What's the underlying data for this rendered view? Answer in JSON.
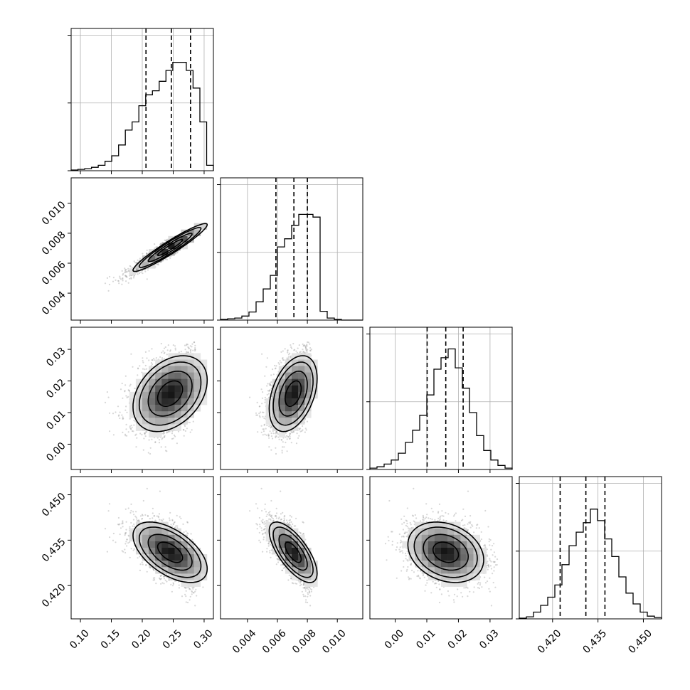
{
  "chart_data": {
    "type": "corner",
    "parameters": [
      {
        "range": [
          0.085,
          0.315
        ],
        "ticks": [
          0.1,
          0.15,
          0.2,
          0.25,
          0.3
        ],
        "tick_labels": [
          "0.10",
          "0.15",
          "0.20",
          "0.25",
          "0.30"
        ],
        "mean": 0.245,
        "sd": 0.03,
        "skew": -0.6,
        "quantiles": [
          0.206,
          0.247,
          0.278
        ]
      },
      {
        "range": [
          0.0022,
          0.0117
        ],
        "ticks": [
          0.004,
          0.006,
          0.008,
          0.01
        ],
        "tick_labels": [
          "0.004",
          "0.006",
          "0.008",
          "0.010"
        ],
        "mean": 0.00705,
        "sd": 0.0008,
        "skew": -0.6,
        "quantiles": [
          0.0059,
          0.0071,
          0.008
        ]
      },
      {
        "range": [
          -0.008,
          0.037
        ],
        "ticks": [
          0.0,
          0.01,
          0.02,
          0.03
        ],
        "tick_labels": [
          "0.00",
          "0.01",
          "0.02",
          "0.03"
        ],
        "mean": 0.016,
        "sd": 0.006,
        "skew": 0,
        "quantiles": [
          0.0101,
          0.016,
          0.0215
        ]
      },
      {
        "range": [
          0.409,
          0.456
        ],
        "ticks": [
          0.42,
          0.435,
          0.45
        ],
        "tick_labels": [
          "0.420",
          "0.435",
          "0.450"
        ],
        "mean": 0.431,
        "sd": 0.005,
        "skew": 0,
        "quantiles": [
          0.4225,
          0.431,
          0.4373
        ]
      }
    ],
    "correlations": [
      [
        1,
        0.95,
        0.35,
        -0.55
      ],
      [
        0.95,
        1,
        0.4,
        -0.7
      ],
      [
        0.35,
        0.4,
        1,
        -0.25
      ],
      [
        -0.55,
        -0.7,
        -0.25,
        1
      ]
    ],
    "diag_histograms": [
      [
        1,
        2,
        3,
        5,
        8,
        14,
        22,
        38,
        60,
        72,
        96,
        112,
        118,
        132,
        148,
        160,
        160,
        148,
        122,
        72,
        8
      ],
      [
        1,
        2,
        3,
        6,
        12,
        27,
        46,
        66,
        108,
        120,
        140,
        156,
        156,
        152,
        13,
        3,
        1,
        0,
        0,
        0
      ],
      [
        2,
        4,
        8,
        14,
        24,
        40,
        58,
        80,
        110,
        148,
        165,
        178,
        150,
        120,
        84,
        50,
        28,
        14,
        6,
        2
      ],
      [
        1,
        3,
        10,
        20,
        32,
        50,
        80,
        108,
        128,
        142,
        162,
        145,
        118,
        92,
        62,
        38,
        22,
        10,
        4,
        2
      ]
    ],
    "diag_hist_ylim": [
      0,
      210
    ],
    "diag_hist_yticks": [
      0,
      100,
      200
    ],
    "grid": true,
    "quantile_style": "dashed"
  }
}
